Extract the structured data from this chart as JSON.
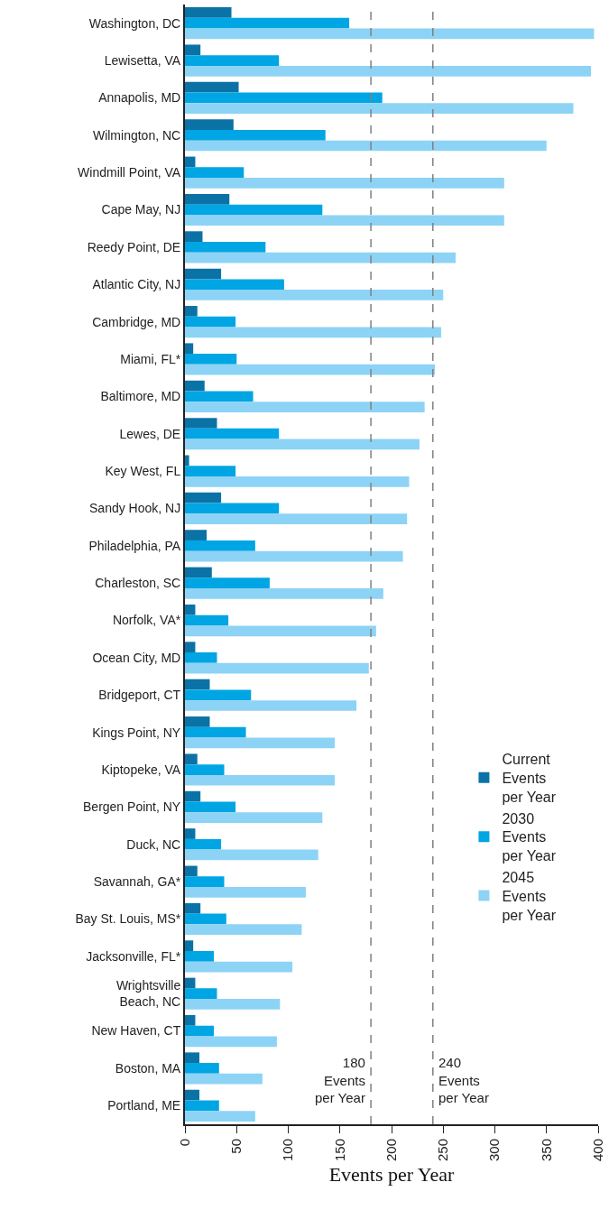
{
  "chart_data": {
    "type": "bar",
    "orientation": "horizontal",
    "xlabel": "Events per Year",
    "categories": [
      "Washington, DC",
      "Lewisetta, VA",
      "Annapolis, MD",
      "Wilmington, NC",
      "Windmill Point, VA",
      "Cape May, NJ",
      "Reedy Point, DE",
      "Atlantic City, NJ",
      "Cambridge, MD",
      "Miami, FL*",
      "Baltimore, MD",
      "Lewes, DE",
      "Key West, FL",
      "Sandy Hook, NJ",
      "Philadelphia, PA",
      "Charleston, SC",
      "Norfolk, VA*",
      "Ocean City, MD",
      "Bridgeport, CT",
      "Kings Point, NY",
      "Kiptopeke, VA",
      "Bergen Point, NY",
      "Duck, NC",
      "Savannah, GA*",
      "Bay St. Louis, MS*",
      "Jacksonville, FL*",
      "Wrightsville\nBeach, NC",
      "New Haven, CT",
      "Boston, MA",
      "Portland, ME"
    ],
    "series": [
      {
        "name": "Current\nEvents\nper Year",
        "color": "#0b72a6",
        "values": [
          45,
          15,
          52,
          47,
          10,
          43,
          17,
          35,
          12,
          8,
          19,
          31,
          4,
          35,
          21,
          26,
          10,
          10,
          24,
          24,
          12,
          15,
          10,
          12,
          15,
          8,
          10,
          10,
          14,
          14
        ]
      },
      {
        "name": "2030\nEvents\nper Year",
        "color": "#00a5e3",
        "values": [
          159,
          91,
          191,
          136,
          57,
          133,
          78,
          96,
          49,
          50,
          66,
          91,
          49,
          91,
          68,
          82,
          42,
          31,
          64,
          59,
          38,
          49,
          35,
          38,
          40,
          28,
          31,
          28,
          33,
          33
        ]
      },
      {
        "name": "2045\nEvents\nper Year",
        "color": "#8dd3f5",
        "values": [
          396,
          393,
          376,
          350,
          309,
          309,
          262,
          250,
          248,
          242,
          232,
          227,
          217,
          215,
          211,
          192,
          185,
          178,
          166,
          145,
          145,
          133,
          129,
          117,
          113,
          104,
          92,
          89,
          75,
          68
        ]
      }
    ],
    "xlim": [
      0,
      400
    ],
    "xticks": [
      0,
      50,
      100,
      150,
      200,
      250,
      300,
      350,
      400
    ],
    "ref_lines": [
      {
        "axis": "x",
        "value": 180,
        "label": "180\nEvents\nper Year",
        "color": "#808080",
        "line_style": "dashed"
      },
      {
        "axis": "x",
        "value": 240,
        "label": "240\nEvents\nper Year",
        "color": "#808080",
        "line_style": "dashed"
      }
    ],
    "legend": "bottom right"
  }
}
